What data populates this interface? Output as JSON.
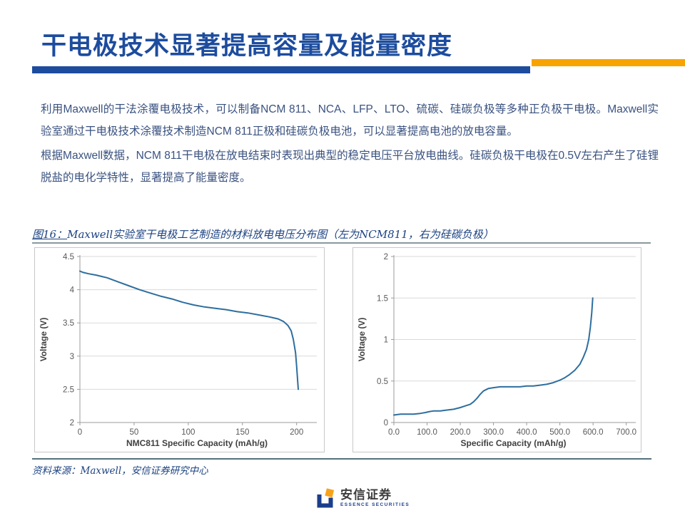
{
  "slide": {
    "title": "干电极技术显著提高容量及能量密度",
    "paragraphs": [
      "利用Maxwell的干法涂覆电极技术，可以制备NCM 811、NCA、LFP、LTO、硫碳、硅碳负极等多种正负极干电极。Maxwell实验室通过干电极技术涂覆技术制造NCM 811正极和硅碳负极电池，可以显著提高电池的放电容量。",
      "根据Maxwell数据，NCM 811干电极在放电结束时表现出典型的稳定电压平台放电曲线。硅碳负极干电极在0.5V左右产生了硅锂脱盐的电化学特性，显著提高了能量密度。"
    ],
    "figure_caption_prefix": "图16：",
    "figure_caption_text": "Maxwell实验室干电极工艺制造的材料放电电压分布图（左为NCM811，右为硅碳负极）",
    "source_note": "资料来源：Maxwell，安信证券研究中心",
    "logo": {
      "name": "安信证券",
      "subtitle": "ESSENCE SECURITIES"
    },
    "colors": {
      "accent_blue": "#1d4c9e",
      "accent_orange": "#f7a400",
      "body_text": "#3a5280",
      "chart_line_blue": "#2e6e9e",
      "logo_blue": "#1b3e8c",
      "logo_orange": "#f7a21b"
    }
  },
  "chart_data": [
    {
      "type": "line",
      "title": "",
      "xlabel": "NMC811 Specific Capacity (mAh/g)",
      "ylabel": "Voltage (V)",
      "xlim": [
        0,
        216
      ],
      "ylim": [
        2,
        4.5
      ],
      "xticks": [
        0,
        50,
        100,
        150,
        200
      ],
      "xtick_labels": [
        "0",
        "50",
        "100",
        "150",
        "200"
      ],
      "yticks": [
        2,
        2.5,
        3,
        3.5,
        4,
        4.5
      ],
      "ytick_labels": [
        "2",
        "2.5",
        "3",
        "3.5",
        "4",
        "4.5"
      ],
      "grid": true,
      "legend": "none",
      "line_color": "#2e6e9e",
      "x": [
        0,
        3,
        8,
        15,
        20,
        25,
        35,
        45,
        55,
        65,
        75,
        85,
        95,
        105,
        115,
        125,
        135,
        145,
        155,
        165,
        175,
        183,
        188,
        192,
        195,
        197,
        199,
        200,
        201,
        201.5
      ],
      "y": [
        4.28,
        4.26,
        4.24,
        4.22,
        4.2,
        4.18,
        4.12,
        4.06,
        4.0,
        3.95,
        3.9,
        3.86,
        3.81,
        3.77,
        3.74,
        3.72,
        3.7,
        3.67,
        3.65,
        3.62,
        3.59,
        3.56,
        3.52,
        3.46,
        3.38,
        3.25,
        3.05,
        2.85,
        2.62,
        2.5
      ]
    },
    {
      "type": "line",
      "title": "",
      "xlabel": "Specific Capacity (mAh/g)",
      "ylabel": "Voltage (V)",
      "xlim": [
        0,
        720
      ],
      "ylim": [
        0,
        2
      ],
      "xticks": [
        0,
        100,
        200,
        300,
        400,
        500,
        600,
        700
      ],
      "xtick_labels": [
        "0.0",
        "100.0",
        "200.0",
        "300.0",
        "400.0",
        "500.0",
        "600.0",
        "700.0"
      ],
      "yticks": [
        0,
        0.5,
        1,
        1.5,
        2
      ],
      "ytick_labels": [
        "0",
        "0.5",
        "1",
        "1.5",
        "2"
      ],
      "grid": true,
      "legend": "none",
      "line_color": "#2e6e9e",
      "x": [
        0,
        20,
        40,
        60,
        80,
        95,
        105,
        120,
        140,
        160,
        180,
        200,
        215,
        230,
        240,
        250,
        260,
        270,
        285,
        300,
        320,
        340,
        360,
        380,
        400,
        420,
        440,
        460,
        480,
        500,
        515,
        530,
        545,
        560,
        570,
        580,
        587,
        592,
        596,
        599
      ],
      "y": [
        0.09,
        0.1,
        0.1,
        0.1,
        0.11,
        0.12,
        0.13,
        0.14,
        0.14,
        0.15,
        0.16,
        0.18,
        0.2,
        0.22,
        0.25,
        0.29,
        0.34,
        0.38,
        0.41,
        0.42,
        0.43,
        0.43,
        0.43,
        0.43,
        0.44,
        0.44,
        0.45,
        0.46,
        0.48,
        0.51,
        0.54,
        0.58,
        0.63,
        0.7,
        0.78,
        0.88,
        1.0,
        1.15,
        1.32,
        1.5
      ]
    }
  ]
}
